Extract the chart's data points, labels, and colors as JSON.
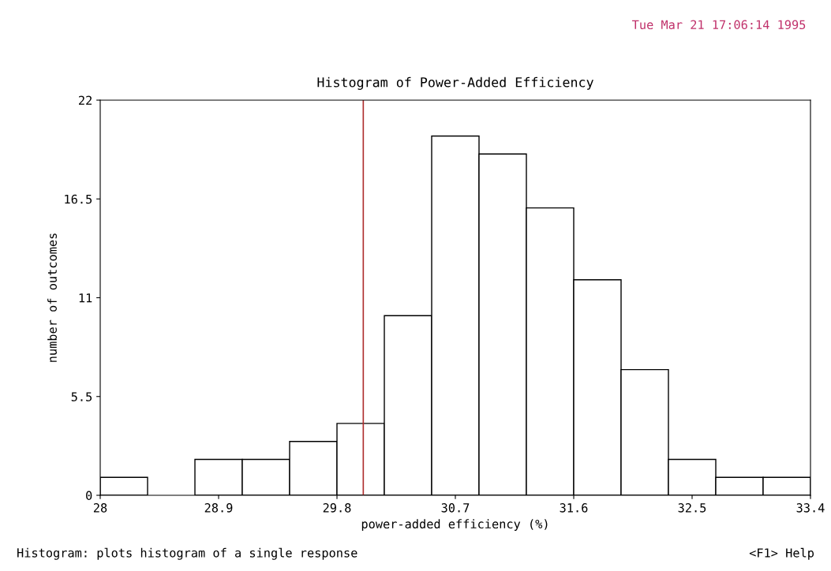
{
  "chart_data": {
    "type": "histogram",
    "title": "Histogram of Power-Added Efficiency",
    "xlabel": "power-added efficiency (%)",
    "ylabel": "number of outcomes",
    "bins": [
      28,
      28.36,
      28.72,
      29.08,
      29.44,
      29.8,
      30.16,
      30.52,
      30.88,
      31.24,
      31.6,
      31.96,
      32.32,
      32.68,
      33.04,
      33.4
    ],
    "values": [
      1,
      0,
      2,
      2,
      3,
      4,
      10,
      20,
      19,
      16,
      12,
      7,
      2,
      1,
      1
    ],
    "color": "#ffffff",
    "xlim": [
      28,
      33.4
    ],
    "xticks": [
      28,
      28.9,
      29.8,
      30.7,
      31.6,
      32.5,
      33.4
    ],
    "ylim": [
      0,
      22
    ],
    "yticks": [
      0,
      5.5,
      11,
      16.5,
      22
    ],
    "ref_lines": [
      {
        "axis": "x",
        "value": 30,
        "label": null,
        "color": "#b03030"
      }
    ],
    "grid": false,
    "annotations": [
      "Tue Mar 21 17:06:14 1995",
      "Histogram: plots histogram of a single response",
      "<F1> Help"
    ]
  }
}
